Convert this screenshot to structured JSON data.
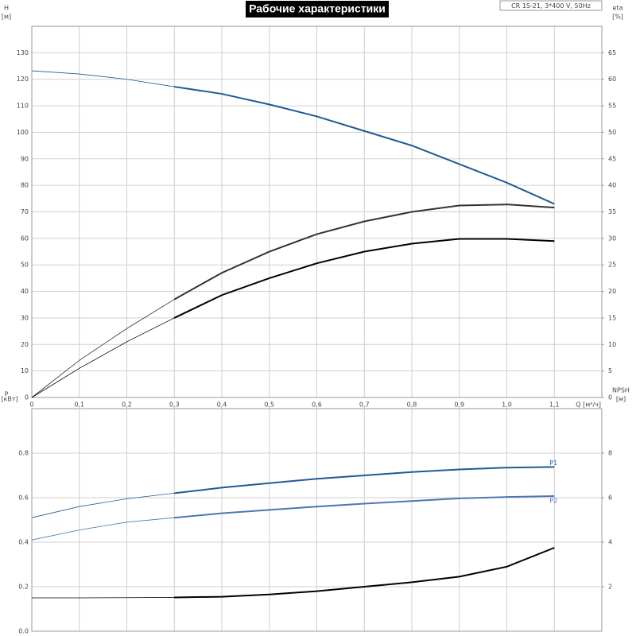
{
  "chart_data": [
    {
      "type": "line",
      "title": "Рабочие характеристики",
      "annotation": "CR 1S-21, 3*400 V, 50Hz",
      "ylabel": "H",
      "yunit": "[м]",
      "y2label": "eta",
      "y2unit": "[%]",
      "xlabel": "Q [м³/ч]",
      "x": [
        0,
        0.1,
        0.2,
        0.3,
        0.4,
        0.5,
        0.6,
        0.7,
        0.8,
        0.9,
        1.0,
        1.1
      ],
      "xlim": [
        0,
        1.2
      ],
      "xticks": [
        0,
        {
          "value": 0.1,
          "label": "0,1"
        },
        {
          "value": 0.2,
          "label": "0,2"
        },
        {
          "value": 0.3,
          "label": "0,3"
        },
        {
          "value": 0.4,
          "label": "0,4"
        },
        {
          "value": 0.5,
          "label": "0,5"
        },
        {
          "value": 0.6,
          "label": "0,6"
        },
        {
          "value": 0.7,
          "label": "0,7"
        },
        {
          "value": 0.8,
          "label": "0,8"
        },
        {
          "value": 0.9,
          "label": "0,9"
        },
        {
          "value": 1.0,
          "label": "1,0"
        },
        {
          "value": 1.1,
          "label": "1,1"
        }
      ],
      "ylim": [
        0,
        140
      ],
      "yticks": [
        0,
        10,
        20,
        30,
        40,
        50,
        60,
        70,
        80,
        90,
        100,
        110,
        120,
        130
      ],
      "y2lim": [
        0,
        70
      ],
      "y2ticks": [
        0,
        5,
        10,
        15,
        20,
        25,
        30,
        35,
        40,
        45,
        50,
        55,
        60,
        65
      ],
      "grid": true,
      "emphasis_xlim": [
        0.3,
        1.1
      ],
      "show_xtick_labels": true,
      "series": [
        {
          "color": "#1f5a96",
          "values": [
            123.2,
            122,
            120,
            117.2,
            114.5,
            110.5,
            106,
            100.5,
            95,
            88,
            81,
            73
          ]
        },
        {
          "color": "#333333",
          "axis": "y2",
          "values": [
            0,
            7,
            13,
            18.5,
            23.5,
            27.5,
            30.8,
            33.2,
            35,
            36.2,
            36.4,
            35.8
          ]
        },
        {
          "color": "#000000",
          "axis": "y2",
          "values": [
            0,
            5.5,
            10.5,
            15,
            19.3,
            22.5,
            25.3,
            27.5,
            29,
            29.9,
            29.9,
            29.5
          ]
        }
      ]
    },
    {
      "type": "line",
      "ylabel": "P",
      "yunit": "[кВт]",
      "y2label": "NPSH",
      "y2unit": "[м]",
      "x": [
        0,
        0.1,
        0.2,
        0.3,
        0.4,
        0.5,
        0.6,
        0.7,
        0.8,
        0.9,
        1.0,
        1.1
      ],
      "xlim": [
        0,
        1.2
      ],
      "xticks": [
        0,
        0.1,
        0.2,
        0.3,
        0.4,
        0.5,
        0.6,
        0.7,
        0.8,
        0.9,
        1.0,
        1.1
      ],
      "ylim": [
        0,
        1.0
      ],
      "yticks": [
        {
          "value": 0,
          "label": "0.0"
        },
        0.2,
        0.4,
        0.6,
        0.8
      ],
      "y2lim": [
        0,
        10
      ],
      "y2ticks": [
        2,
        4,
        6,
        8
      ],
      "grid": true,
      "emphasis_xlim": [
        0.3,
        1.1
      ],
      "show_xtick_labels": false,
      "series": [
        {
          "name": "P1",
          "color": "#1f5a96",
          "values": [
            0.51,
            0.56,
            0.595,
            0.62,
            0.645,
            0.665,
            0.685,
            0.7,
            0.715,
            0.727,
            0.735,
            0.738
          ]
        },
        {
          "name": "P2",
          "color": "#4a78b0",
          "values": [
            0.41,
            0.455,
            0.49,
            0.51,
            0.53,
            0.545,
            0.56,
            0.573,
            0.585,
            0.597,
            0.603,
            0.607
          ]
        },
        {
          "color": "#000000",
          "axis": "y2",
          "values": [
            1.5,
            1.5,
            1.51,
            1.52,
            1.55,
            1.65,
            1.8,
            2.0,
            2.2,
            2.45,
            2.9,
            3.75
          ]
        }
      ]
    }
  ]
}
